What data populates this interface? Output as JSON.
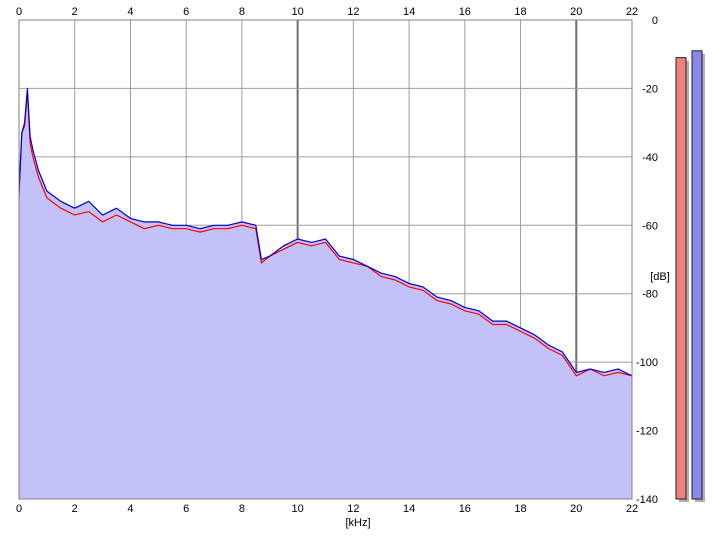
{
  "chart_data": {
    "type": "area",
    "xlabel": "[kHz]",
    "ylabel": "[dB]",
    "xlim": [
      0,
      22
    ],
    "ylim": [
      -140,
      0
    ],
    "x_ticks": [
      0,
      2,
      4,
      6,
      8,
      10,
      12,
      14,
      16,
      18,
      20,
      22
    ],
    "y_ticks": [
      0,
      -20,
      -40,
      -60,
      -80,
      -100,
      -120,
      -140
    ],
    "grid": true,
    "legend": "none",
    "colors": {
      "background": "#ffffff",
      "fill": "#c2c2f8",
      "grid": "#9e9e9e",
      "left_channel": "#ff0000",
      "right_channel": "#0000c8",
      "meter_left": "#f08080",
      "meter_right": "#8888ee"
    },
    "series": [
      {
        "x": [
          0,
          0.1,
          0.2,
          0.3,
          0.4,
          0.5,
          0.7,
          1.0,
          1.5,
          2.0,
          2.5,
          3.0,
          3.5,
          4.0,
          4.5,
          5.0,
          5.5,
          6.0,
          6.5,
          7.0,
          7.5,
          8.0,
          8.5,
          8.7,
          9.0,
          9.5,
          10.0,
          10.5,
          11.0,
          11.5,
          12.0,
          12.5,
          13.0,
          13.5,
          14.0,
          14.5,
          15.0,
          15.5,
          16.0,
          16.5,
          17.0,
          17.5,
          18.0,
          18.5,
          19.0,
          19.5,
          20.0,
          20.5,
          21.0,
          21.5,
          22.0
        ],
        "values": [
          -52,
          -33,
          -31,
          -21,
          -36,
          -40,
          -46,
          -52,
          -55,
          -57,
          -56,
          -59,
          -57,
          -59,
          -61,
          -60,
          -61,
          -61,
          -62,
          -61,
          -61,
          -60,
          -61,
          -71,
          -69,
          -67,
          -65,
          -66,
          -65,
          -70,
          -71,
          -72,
          -75,
          -76,
          -78,
          -79,
          -82,
          -83,
          -85,
          -86,
          -89,
          -89,
          -91,
          -93,
          -96,
          -98,
          -104,
          -102,
          -104,
          -103,
          -104
        ]
      },
      {
        "x": [
          0,
          0.1,
          0.2,
          0.3,
          0.4,
          0.5,
          0.7,
          1.0,
          1.5,
          2.0,
          2.5,
          3.0,
          3.5,
          4.0,
          4.5,
          5.0,
          5.5,
          6.0,
          6.5,
          7.0,
          7.5,
          8.0,
          8.5,
          8.7,
          9.0,
          9.5,
          10.0,
          10.5,
          11.0,
          11.5,
          12.0,
          12.5,
          13.0,
          13.5,
          14.0,
          14.5,
          15.0,
          15.5,
          16.0,
          16.5,
          17.0,
          17.5,
          18.0,
          18.5,
          19.0,
          19.5,
          20.0,
          20.5,
          21.0,
          21.5,
          22.0
        ],
        "values": [
          -50,
          -33,
          -30,
          -20,
          -34,
          -38,
          -44,
          -50,
          -53,
          -55,
          -53,
          -57,
          -55,
          -58,
          -59,
          -59,
          -60,
          -60,
          -61,
          -60,
          -60,
          -59,
          -60,
          -70,
          -69,
          -66,
          -64,
          -65,
          -64,
          -69,
          -70,
          -72,
          -74,
          -75,
          -77,
          -78,
          -81,
          -82,
          -84,
          -85,
          -88,
          -88,
          -90,
          -92,
          -95,
          -97,
          -103,
          -102,
          -103,
          -102,
          -104
        ]
      }
    ]
  },
  "level_meter": {
    "left_value_db": -11,
    "right_value_db": -9
  }
}
